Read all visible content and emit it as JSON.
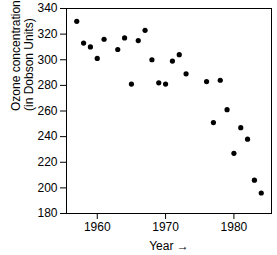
{
  "chart_data": {
    "type": "scatter",
    "xlabel": "Year",
    "ylabel": "Ozone concentration\n(in Dobson Units)",
    "x": [
      1957,
      1958,
      1959,
      1960,
      1961,
      1963,
      1964,
      1965,
      1966,
      1967,
      1968,
      1969,
      1970,
      1971,
      1972,
      1973,
      1976,
      1977,
      1978,
      1979,
      1980,
      1981,
      1982,
      1983,
      1984
    ],
    "values": [
      330,
      313,
      310,
      301,
      316,
      308,
      317,
      281,
      315,
      323,
      300,
      282,
      281,
      299,
      304,
      289,
      283,
      251,
      284,
      261,
      227,
      247,
      238,
      206,
      196
    ],
    "color": "#000000",
    "marker": "circle",
    "xlim": [
      1955.5,
      1985.5
    ],
    "xticks": [
      1960,
      1970,
      1980
    ],
    "ylim": [
      180,
      340
    ],
    "yticks": [
      180,
      200,
      220,
      240,
      260,
      280,
      300,
      320,
      340
    ],
    "grid": false
  }
}
